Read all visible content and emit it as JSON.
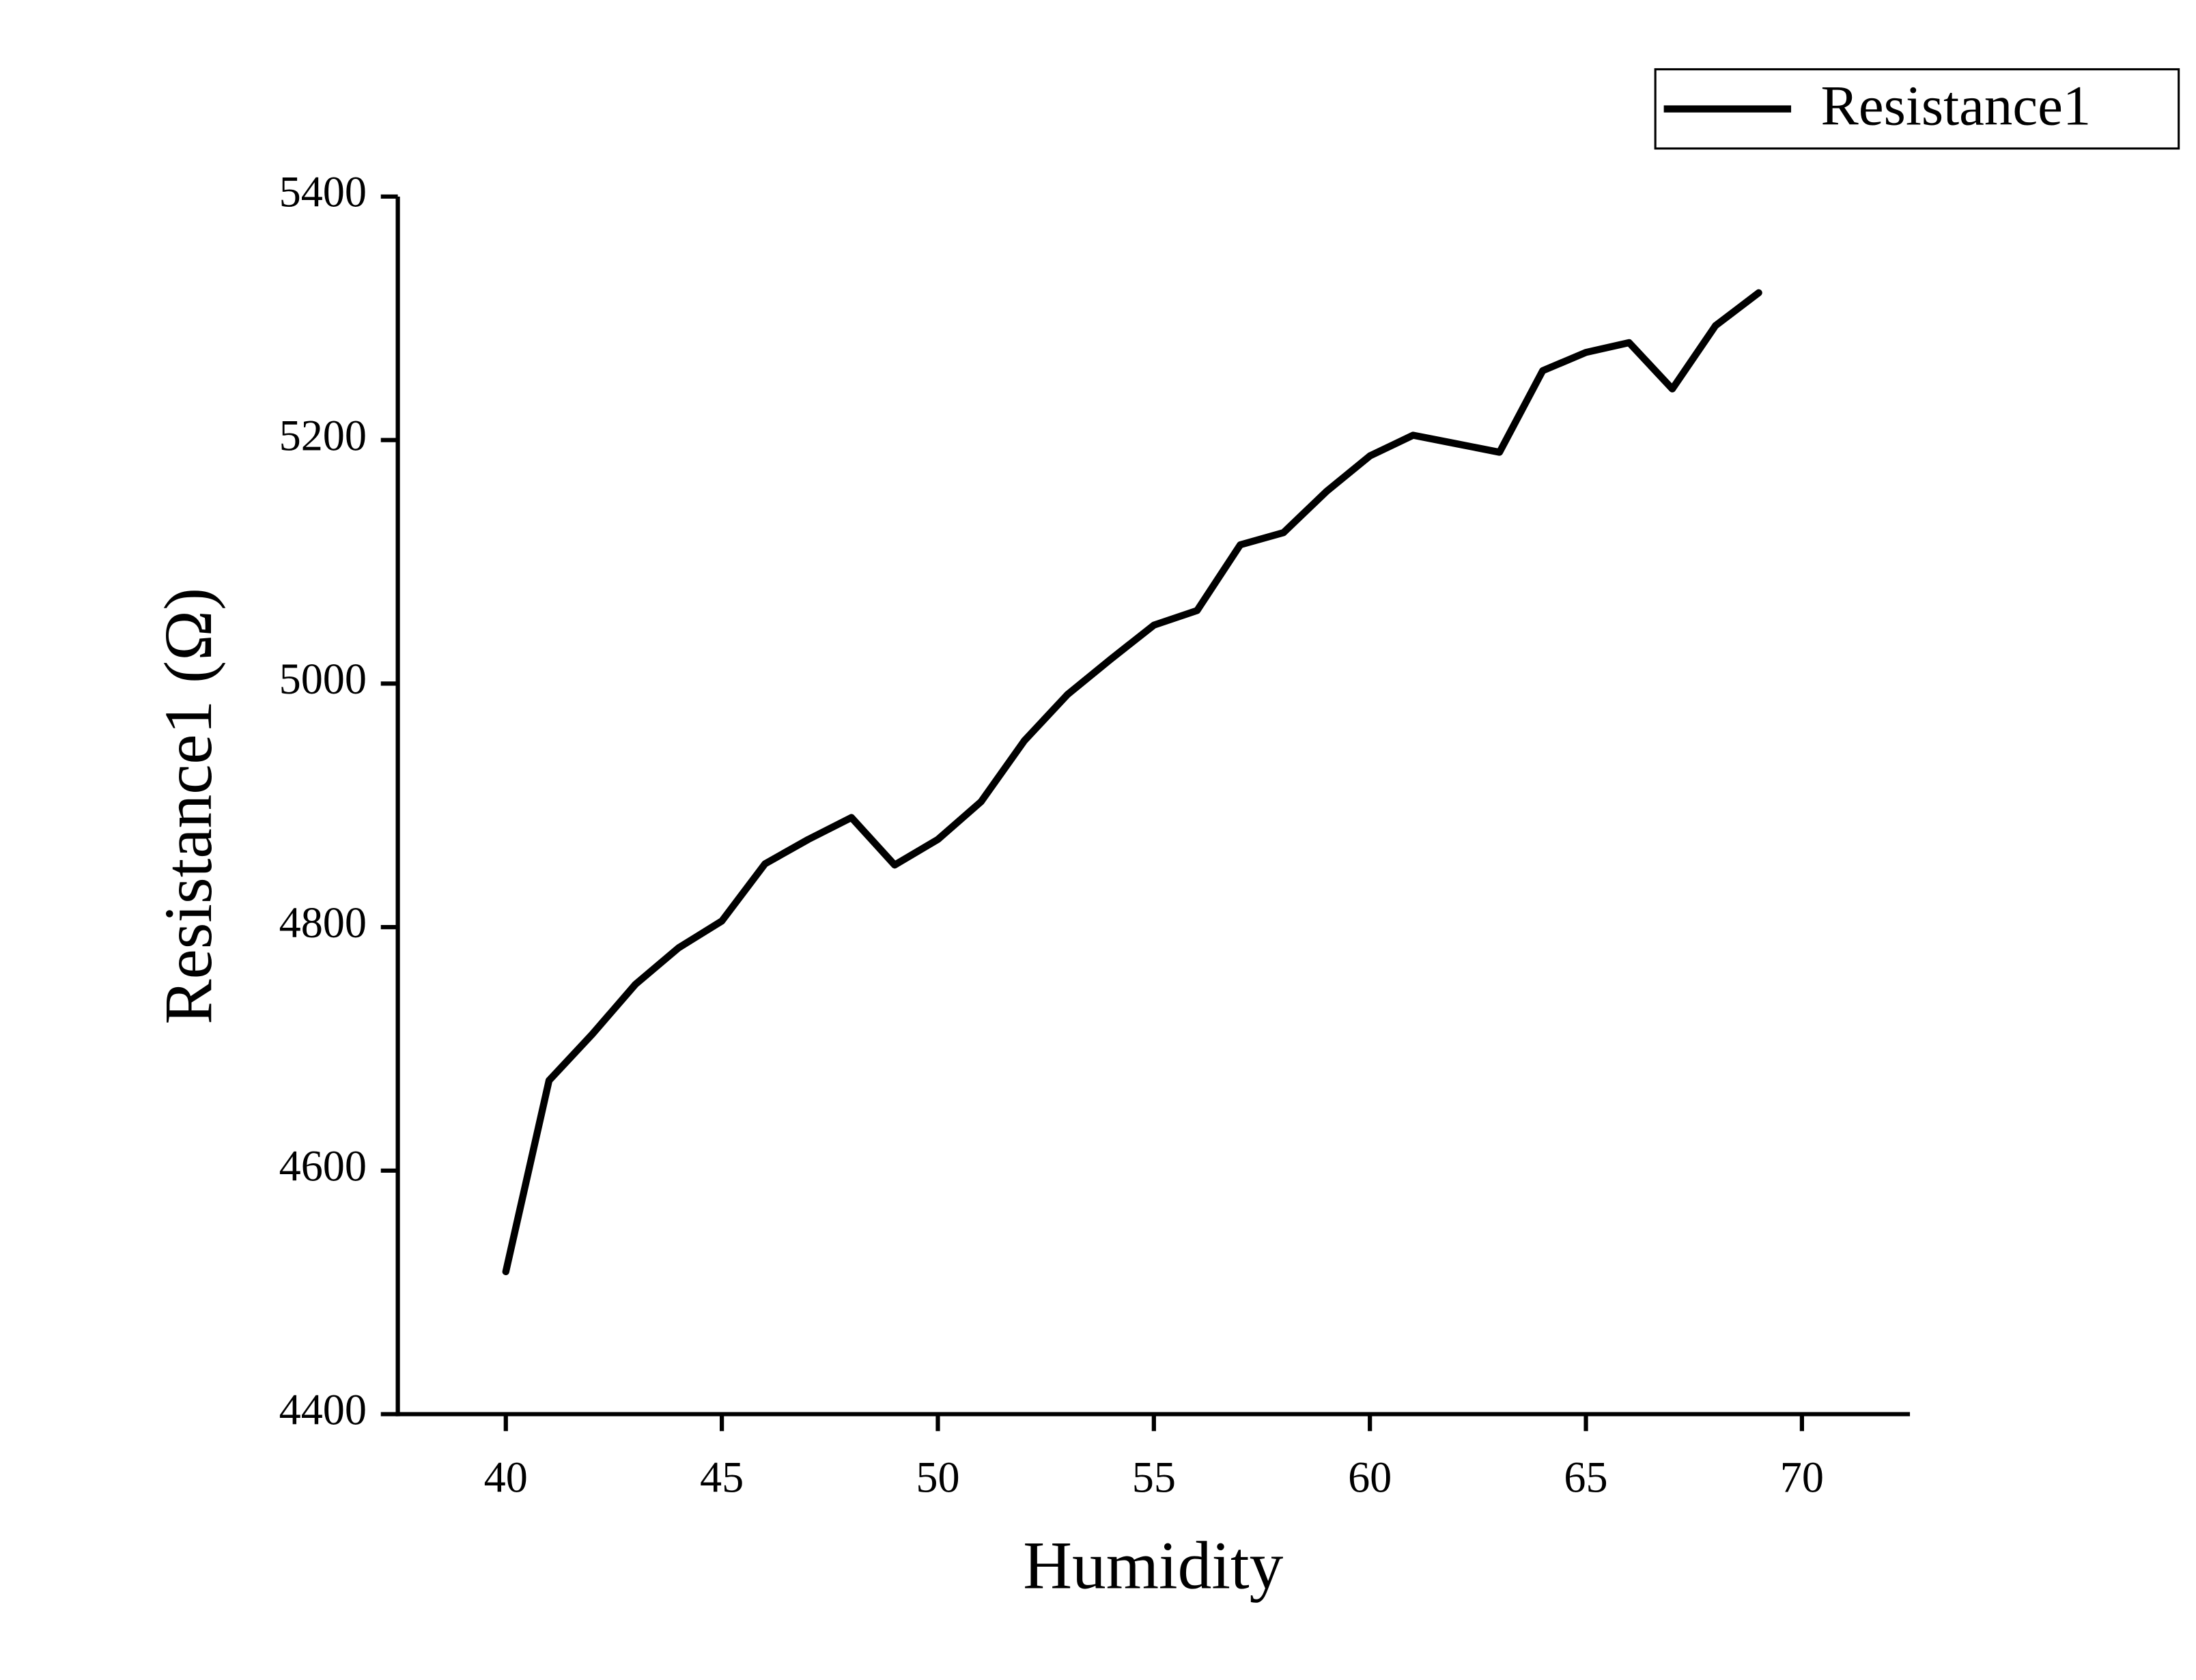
{
  "chart_data": {
    "type": "line",
    "x_label": "Humidity",
    "y_label": "Resistance1 (Ω)",
    "x": [
      40,
      41,
      42,
      43,
      44,
      45,
      46,
      47,
      48,
      49,
      50,
      51,
      52,
      53,
      54,
      55,
      56,
      57,
      58,
      59,
      60,
      61,
      62,
      63,
      64,
      65,
      66,
      67,
      68,
      69
    ],
    "series": [
      {
        "name": "Resistance1",
        "color": "#000000",
        "values": [
          4517,
          4674,
          4712,
          4753,
          4783,
          4805,
          4852,
          4872,
          4890,
          4851,
          4872,
          4903,
          4953,
          4991,
          5020,
          5048,
          5060,
          5114,
          5124,
          5158,
          5187,
          5204,
          5197,
          5190,
          5257,
          5272,
          5280,
          5242,
          5294,
          5321
        ]
      }
    ],
    "xlim": [
      37.5,
      72.5
    ],
    "xticks": [
      40,
      45,
      50,
      55,
      60,
      65,
      70
    ],
    "ylim": [
      4400,
      5400
    ],
    "yticks": [
      4400,
      4600,
      4800,
      5000,
      5200,
      5400
    ],
    "grid": false,
    "legend": "top-right"
  }
}
